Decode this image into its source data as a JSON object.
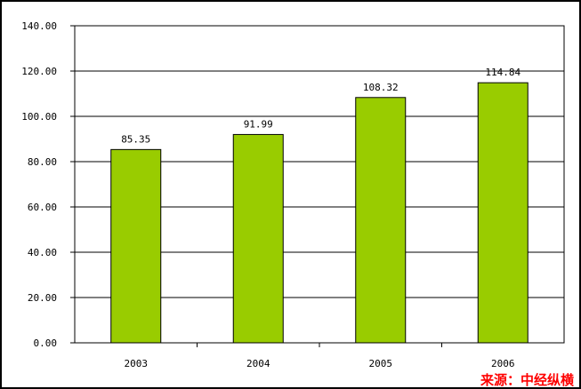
{
  "chart_data": {
    "type": "bar",
    "title": "",
    "xlabel": "",
    "ylabel": "",
    "categories": [
      "2003",
      "2004",
      "2005",
      "2006"
    ],
    "values": [
      85.35,
      91.99,
      108.32,
      114.84
    ],
    "value_labels": [
      "85.35",
      "91.99",
      "108.32",
      "114.84"
    ],
    "ylim": [
      0,
      140
    ],
    "yticks": [
      "0.00",
      "20.00",
      "40.00",
      "60.00",
      "80.00",
      "100.00",
      "120.00",
      "140.00"
    ],
    "ytick_values": [
      0,
      20,
      40,
      60,
      80,
      100,
      120,
      140
    ],
    "grid": true,
    "legend": "none",
    "bar_color": "#99cc00",
    "bar_edge_color": "#000000"
  },
  "source_note": "来源：中经纵横",
  "colors": {
    "source": "#ff0000",
    "frame": "#000000"
  }
}
